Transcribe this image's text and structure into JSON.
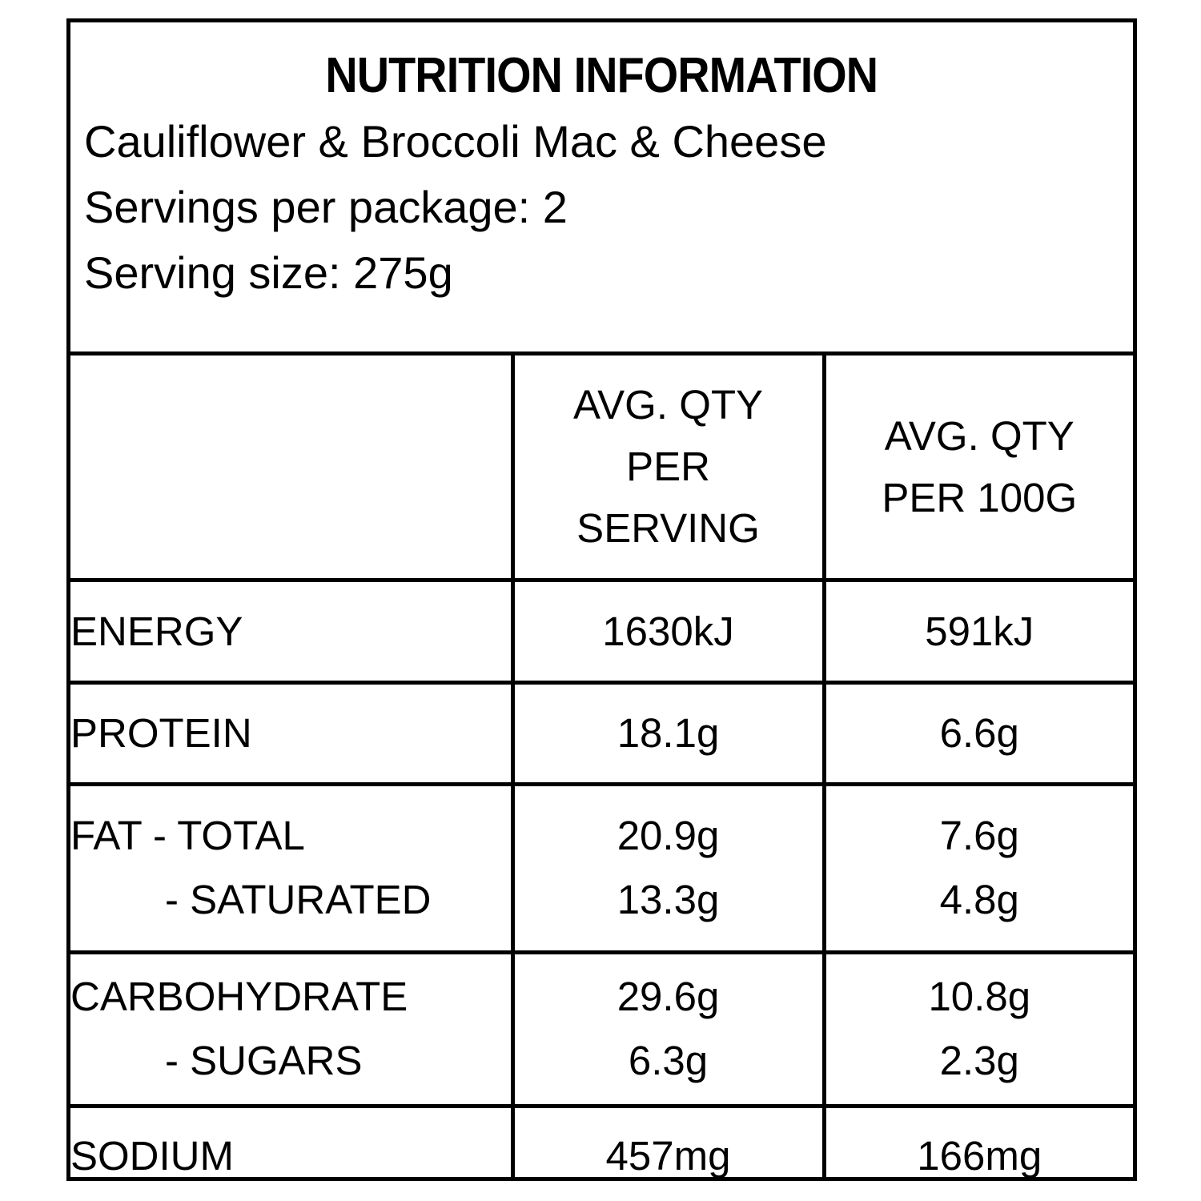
{
  "label": {
    "title": "NUTRITION INFORMATION",
    "product_name": "Cauliflower & Broccoli Mac & Cheese",
    "servings_per_package": "Servings per package: 2",
    "serving_size": "Serving size: 275g"
  },
  "table": {
    "columns": {
      "per_serving": "AVG. QTY\nPER\nSERVING",
      "per_100g": "AVG. QTY\nPER 100G"
    },
    "rows": [
      {
        "label": "ENERGY",
        "per_serving": "1630kJ",
        "per_100g": "591kJ"
      },
      {
        "label": "PROTEIN",
        "per_serving": "18.1g",
        "per_100g": "6.6g"
      },
      {
        "label": "FAT - TOTAL",
        "label2": "- SATURATED",
        "per_serving": "20.9g\n13.3g",
        "per_100g": "7.6g\n4.8g"
      },
      {
        "label": "CARBOHYDRATE",
        "label2": "- SUGARS",
        "per_serving": "29.6g\n6.3g",
        "per_100g": "10.8g\n2.3g"
      },
      {
        "label": "SODIUM",
        "per_serving": "457mg",
        "per_100g": "166mg"
      }
    ]
  },
  "colors": {
    "text": "#000000",
    "border": "#000000",
    "background": "#ffffff"
  }
}
